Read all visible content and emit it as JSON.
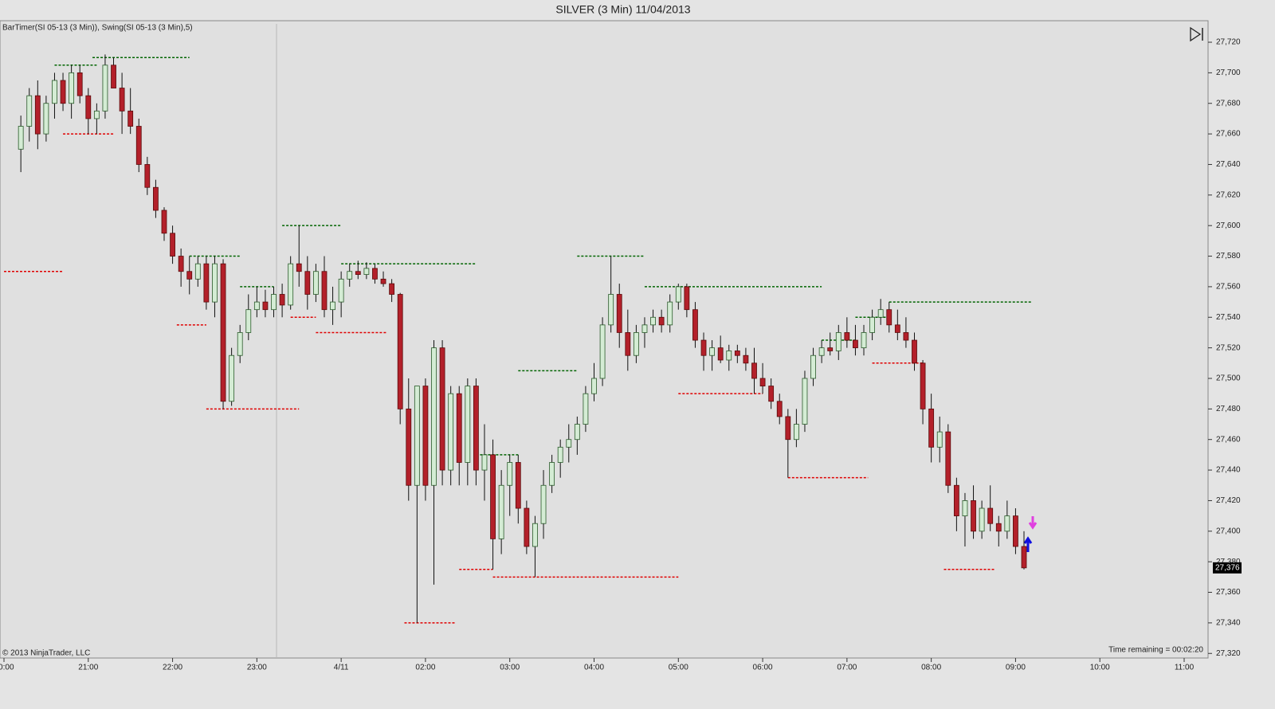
{
  "chart_data": {
    "type": "candlestick",
    "title": "SILVER (3 Min)  11/04/2013",
    "indicator_label": "BarTimer(SI 05-13 (3 Min)), Swing(SI 05-13 (3 Min),5)",
    "copyright": "© 2013 NinjaTrader, LLC",
    "time_remaining": "Time remaining = 00:02:20",
    "last_price": {
      "value": 27376,
      "label": "27,376"
    },
    "up_color": "#d4ecd4",
    "down_color": "#b3202a",
    "swing_high_color": "#006400",
    "swing_low_color": "#e00000",
    "grid": false,
    "xlim": [
      0,
      14.1
    ],
    "xticks": [
      {
        "value": 0,
        "label": "20:00"
      },
      {
        "value": 1,
        "label": "21:00"
      },
      {
        "value": 2,
        "label": "22:00"
      },
      {
        "value": 3,
        "label": "23:00"
      },
      {
        "value": 4,
        "label": "4/11"
      },
      {
        "value": 5,
        "label": "02:00"
      },
      {
        "value": 6,
        "label": "03:00"
      },
      {
        "value": 7,
        "label": "04:00"
      },
      {
        "value": 8,
        "label": "05:00"
      },
      {
        "value": 9,
        "label": "06:00"
      },
      {
        "value": 10,
        "label": "07:00"
      },
      {
        "value": 11,
        "label": "08:00"
      },
      {
        "value": 12,
        "label": "09:00"
      },
      {
        "value": 13,
        "label": "10:00"
      },
      {
        "value": 14,
        "label": "11:00"
      }
    ],
    "ylim": [
      27317,
      27732
    ],
    "yticks": [
      {
        "value": 27320,
        "label": "27,320"
      },
      {
        "value": 27340,
        "label": "27,340"
      },
      {
        "value": 27360,
        "label": "27,360"
      },
      {
        "value": 27380,
        "label": "27,380"
      },
      {
        "value": 27400,
        "label": "27,400"
      },
      {
        "value": 27420,
        "label": "27,420"
      },
      {
        "value": 27440,
        "label": "27,440"
      },
      {
        "value": 27460,
        "label": "27,460"
      },
      {
        "value": 27480,
        "label": "27,480"
      },
      {
        "value": 27500,
        "label": "27,500"
      },
      {
        "value": 27520,
        "label": "27,520"
      },
      {
        "value": 27540,
        "label": "27,540"
      },
      {
        "value": 27560,
        "label": "27,560"
      },
      {
        "value": 27580,
        "label": "27,580"
      },
      {
        "value": 27600,
        "label": "27,600"
      },
      {
        "value": 27620,
        "label": "27,620"
      },
      {
        "value": 27640,
        "label": "27,640"
      },
      {
        "value": 27660,
        "label": "27,660"
      },
      {
        "value": 27680,
        "label": "27,680"
      },
      {
        "value": 27700,
        "label": "27,700"
      },
      {
        "value": 27720,
        "label": "27,720"
      }
    ],
    "x": [
      0.2,
      0.3,
      0.4,
      0.5,
      0.6,
      0.7,
      0.8,
      0.9,
      1.0,
      1.1,
      1.2,
      1.3,
      1.4,
      1.5,
      1.6,
      1.7,
      1.8,
      1.9,
      2.0,
      2.1,
      2.2,
      2.3,
      2.4,
      2.5,
      2.6,
      2.7,
      2.8,
      2.9,
      3.0,
      3.1,
      3.2,
      3.3,
      3.4,
      3.5,
      3.6,
      3.7,
      3.8,
      3.9,
      4.0,
      4.1,
      4.2,
      4.3,
      4.4,
      4.5,
      4.6,
      4.7,
      4.8,
      4.9,
      5.0,
      5.1,
      5.2,
      5.3,
      5.4,
      5.5,
      5.6,
      5.7,
      5.8,
      5.9,
      6.0,
      6.1,
      6.2,
      6.3,
      6.4,
      6.5,
      6.6,
      6.7,
      6.8,
      6.9,
      7.0,
      7.1,
      7.2,
      7.3,
      7.4,
      7.5,
      7.6,
      7.7,
      7.8,
      7.9,
      8.0,
      8.1,
      8.2,
      8.3,
      8.4,
      8.5,
      8.6,
      8.7,
      8.8,
      8.9,
      9.0,
      9.1,
      9.2,
      9.3,
      9.4,
      9.5,
      9.6,
      9.7,
      9.8,
      9.9,
      10.0,
      10.1,
      10.2,
      10.3,
      10.4,
      10.5,
      10.6,
      10.7,
      10.8,
      10.9,
      11.0,
      11.1,
      11.2,
      11.3,
      11.4,
      11.5,
      11.6,
      11.7,
      11.8,
      11.9,
      12.0,
      12.1
    ],
    "candles": [
      [
        27650,
        27672,
        27635,
        27665
      ],
      [
        27665,
        27690,
        27655,
        27685
      ],
      [
        27685,
        27695,
        27650,
        27660
      ],
      [
        27660,
        27685,
        27655,
        27680
      ],
      [
        27680,
        27700,
        27670,
        27695
      ],
      [
        27695,
        27700,
        27675,
        27680
      ],
      [
        27680,
        27705,
        27670,
        27700
      ],
      [
        27700,
        27705,
        27680,
        27685
      ],
      [
        27685,
        27690,
        27660,
        27670
      ],
      [
        27670,
        27680,
        27660,
        27675
      ],
      [
        27675,
        27712,
        27670,
        27705
      ],
      [
        27705,
        27710,
        27690,
        27690
      ],
      [
        27690,
        27700,
        27660,
        27675
      ],
      [
        27675,
        27690,
        27660,
        27665
      ],
      [
        27665,
        27670,
        27635,
        27640
      ],
      [
        27640,
        27645,
        27620,
        27625
      ],
      [
        27625,
        27630,
        27605,
        27610
      ],
      [
        27610,
        27612,
        27590,
        27595
      ],
      [
        27595,
        27600,
        27575,
        27580
      ],
      [
        27580,
        27585,
        27560,
        27570
      ],
      [
        27570,
        27580,
        27555,
        27565
      ],
      [
        27565,
        27580,
        27560,
        27575
      ],
      [
        27575,
        27580,
        27545,
        27550
      ],
      [
        27550,
        27580,
        27540,
        27575
      ],
      [
        27575,
        27578,
        27480,
        27485
      ],
      [
        27485,
        27520,
        27482,
        27515
      ],
      [
        27515,
        27535,
        27510,
        27530
      ],
      [
        27530,
        27555,
        27525,
        27545
      ],
      [
        27545,
        27560,
        27540,
        27550
      ],
      [
        27550,
        27558,
        27540,
        27545
      ],
      [
        27545,
        27560,
        27540,
        27555
      ],
      [
        27555,
        27562,
        27540,
        27548
      ],
      [
        27548,
        27580,
        27545,
        27575
      ],
      [
        27575,
        27600,
        27560,
        27570
      ],
      [
        27570,
        27580,
        27545,
        27555
      ],
      [
        27555,
        27575,
        27550,
        27570
      ],
      [
        27570,
        27580,
        27540,
        27545
      ],
      [
        27545,
        27560,
        27535,
        27550
      ],
      [
        27550,
        27570,
        27540,
        27565
      ],
      [
        27565,
        27575,
        27560,
        27570
      ],
      [
        27570,
        27577,
        27565,
        27568
      ],
      [
        27568,
        27576,
        27565,
        27572
      ],
      [
        27572,
        27575,
        27562,
        27565
      ],
      [
        27565,
        27570,
        27560,
        27562
      ],
      [
        27562,
        27565,
        27550,
        27555
      ],
      [
        27555,
        27556,
        27470,
        27480
      ],
      [
        27480,
        27500,
        27420,
        27430
      ],
      [
        27430,
        27495,
        27340,
        27495
      ],
      [
        27495,
        27500,
        27420,
        27430
      ],
      [
        27430,
        27525,
        27365,
        27520
      ],
      [
        27520,
        27525,
        27430,
        27440
      ],
      [
        27440,
        27495,
        27430,
        27490
      ],
      [
        27490,
        27495,
        27430,
        27445
      ],
      [
        27445,
        27500,
        27430,
        27495
      ],
      [
        27495,
        27500,
        27430,
        27440
      ],
      [
        27440,
        27470,
        27420,
        27450
      ],
      [
        27450,
        27460,
        27375,
        27395
      ],
      [
        27395,
        27440,
        27385,
        27430
      ],
      [
        27430,
        27450,
        27410,
        27445
      ],
      [
        27445,
        27450,
        27405,
        27415
      ],
      [
        27415,
        27420,
        27385,
        27390
      ],
      [
        27390,
        27410,
        27370,
        27405
      ],
      [
        27405,
        27440,
        27395,
        27430
      ],
      [
        27430,
        27450,
        27425,
        27445
      ],
      [
        27445,
        27460,
        27435,
        27455
      ],
      [
        27455,
        27470,
        27445,
        27460
      ],
      [
        27460,
        27475,
        27450,
        27470
      ],
      [
        27470,
        27495,
        27465,
        27490
      ],
      [
        27490,
        27510,
        27485,
        27500
      ],
      [
        27500,
        27540,
        27495,
        27535
      ],
      [
        27535,
        27580,
        27530,
        27555
      ],
      [
        27555,
        27562,
        27520,
        27530
      ],
      [
        27530,
        27545,
        27505,
        27515
      ],
      [
        27515,
        27535,
        27510,
        27530
      ],
      [
        27530,
        27540,
        27520,
        27535
      ],
      [
        27535,
        27545,
        27530,
        27540
      ],
      [
        27540,
        27545,
        27530,
        27535
      ],
      [
        27535,
        27555,
        27530,
        27550
      ],
      [
        27550,
        27562,
        27545,
        27560
      ],
      [
        27560,
        27562,
        27540,
        27545
      ],
      [
        27545,
        27550,
        27520,
        27525
      ],
      [
        27525,
        27530,
        27505,
        27515
      ],
      [
        27515,
        27525,
        27505,
        27520
      ],
      [
        27520,
        27528,
        27510,
        27512
      ],
      [
        27512,
        27522,
        27505,
        27518
      ],
      [
        27518,
        27522,
        27510,
        27515
      ],
      [
        27515,
        27520,
        27505,
        27510
      ],
      [
        27510,
        27520,
        27490,
        27500
      ],
      [
        27500,
        27510,
        27490,
        27495
      ],
      [
        27495,
        27500,
        27480,
        27485
      ],
      [
        27485,
        27490,
        27470,
        27475
      ],
      [
        27475,
        27480,
        27435,
        27460
      ],
      [
        27460,
        27480,
        27455,
        27470
      ],
      [
        27470,
        27505,
        27465,
        27500
      ],
      [
        27500,
        27520,
        27495,
        27515
      ],
      [
        27515,
        27525,
        27510,
        27520
      ],
      [
        27520,
        27530,
        27515,
        27518
      ],
      [
        27518,
        27535,
        27512,
        27530
      ],
      [
        27530,
        27540,
        27520,
        27525
      ],
      [
        27525,
        27535,
        27515,
        27520
      ],
      [
        27520,
        27535,
        27515,
        27530
      ],
      [
        27530,
        27545,
        27525,
        27540
      ],
      [
        27540,
        27552,
        27535,
        27545
      ],
      [
        27545,
        27550,
        27530,
        27535
      ],
      [
        27535,
        27545,
        27525,
        27530
      ],
      [
        27530,
        27540,
        27520,
        27525
      ],
      [
        27525,
        27530,
        27505,
        27510
      ],
      [
        27510,
        27512,
        27470,
        27480
      ],
      [
        27480,
        27490,
        27445,
        27455
      ],
      [
        27455,
        27475,
        27445,
        27465
      ],
      [
        27465,
        27470,
        27425,
        27430
      ],
      [
        27430,
        27435,
        27400,
        27410
      ],
      [
        27410,
        27425,
        27390,
        27420
      ],
      [
        27420,
        27430,
        27395,
        27400
      ],
      [
        27400,
        27420,
        27395,
        27415
      ],
      [
        27415,
        27430,
        27400,
        27405
      ],
      [
        27405,
        27410,
        27390,
        27400
      ],
      [
        27400,
        27420,
        27395,
        27410
      ],
      [
        27410,
        27415,
        27385,
        27390
      ],
      [
        27390,
        27400,
        27375,
        27376
      ]
    ],
    "swing_highs": [
      [
        0.6,
        1.1,
        27705
      ],
      [
        1.05,
        2.2,
        27710
      ],
      [
        2.2,
        2.8,
        27580
      ],
      [
        2.8,
        3.2,
        27560
      ],
      [
        3.3,
        4.0,
        27600
      ],
      [
        4.0,
        5.6,
        27575
      ],
      [
        5.6,
        6.1,
        27450
      ],
      [
        6.1,
        6.8,
        27505
      ],
      [
        6.8,
        7.6,
        27580
      ],
      [
        7.6,
        9.7,
        27560
      ],
      [
        9.7,
        10.1,
        27525
      ],
      [
        10.1,
        10.5,
        27540
      ],
      [
        10.5,
        12.2,
        27550
      ]
    ],
    "swing_lows": [
      [
        0.0,
        0.7,
        27570
      ],
      [
        0.7,
        1.3,
        27660
      ],
      [
        2.05,
        2.4,
        27535
      ],
      [
        2.4,
        3.5,
        27480
      ],
      [
        3.4,
        3.7,
        27540
      ],
      [
        3.7,
        4.55,
        27530
      ],
      [
        4.75,
        5.35,
        27340
      ],
      [
        5.4,
        5.8,
        27375
      ],
      [
        5.8,
        8.0,
        27370
      ],
      [
        8.0,
        9.0,
        27490
      ],
      [
        9.3,
        10.25,
        27435
      ],
      [
        10.3,
        10.9,
        27510
      ],
      [
        11.15,
        11.75,
        27375
      ]
    ]
  }
}
